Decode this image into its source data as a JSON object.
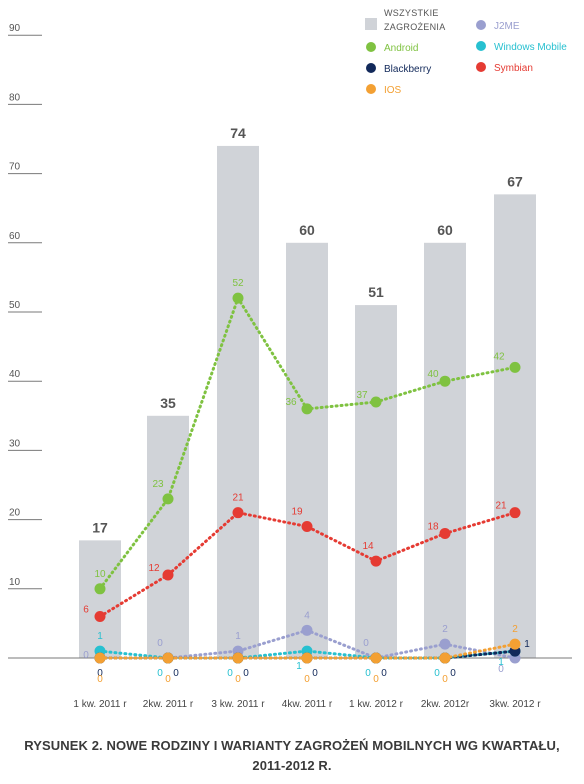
{
  "chart_data": {
    "type": "bar",
    "title": "",
    "xlabel": "",
    "ylabel": "",
    "ylim": [
      0,
      90
    ],
    "yticks": [
      10,
      20,
      30,
      40,
      50,
      60,
      70,
      80,
      90
    ],
    "categories": [
      "1 kw. 2011 r",
      "2kw. 2011 r",
      "3 kw. 2011 r",
      "4kw. 2011 r",
      "1 kw. 2012 r",
      "2kw. 2012r",
      "3kw. 2012 r"
    ],
    "grid": true,
    "legend_position": "top-right",
    "bars": {
      "name": "WSZYSTKIE ZAGROŻENIA",
      "color": "#d0d3d8",
      "values": [
        17,
        35,
        74,
        60,
        51,
        60,
        67
      ]
    },
    "series": [
      {
        "name": "Android",
        "color": "#7fc241",
        "values": [
          10,
          23,
          52,
          36,
          37,
          40,
          42
        ]
      },
      {
        "name": "Symbian",
        "color": "#e53b33",
        "values": [
          6,
          12,
          21,
          19,
          14,
          18,
          21
        ]
      },
      {
        "name": "J2ME",
        "color": "#9a9fcf",
        "values": [
          0,
          0,
          1,
          4,
          0,
          2,
          0
        ]
      },
      {
        "name": "Windows Mobile",
        "color": "#27c0d0",
        "values": [
          1,
          0,
          0,
          1,
          0,
          0,
          1
        ]
      },
      {
        "name": "Blackberry",
        "color": "#12295a",
        "values": [
          0,
          0,
          0,
          0,
          0,
          0,
          1
        ]
      },
      {
        "name": "IOS",
        "color": "#f3a033",
        "values": [
          0,
          0,
          0,
          0,
          0,
          0,
          2
        ]
      }
    ],
    "legend": {
      "bar_line1": "WSZYSTKIE",
      "bar_line2": "ZAGROŻENIA"
    }
  },
  "caption": {
    "line1": "RYSUNEK 2. NOWE RODZINY I WARIANTY ZAGROŻEŃ MOBILNYCH WG KWARTAŁU,",
    "line2": "2011-2012 R."
  }
}
